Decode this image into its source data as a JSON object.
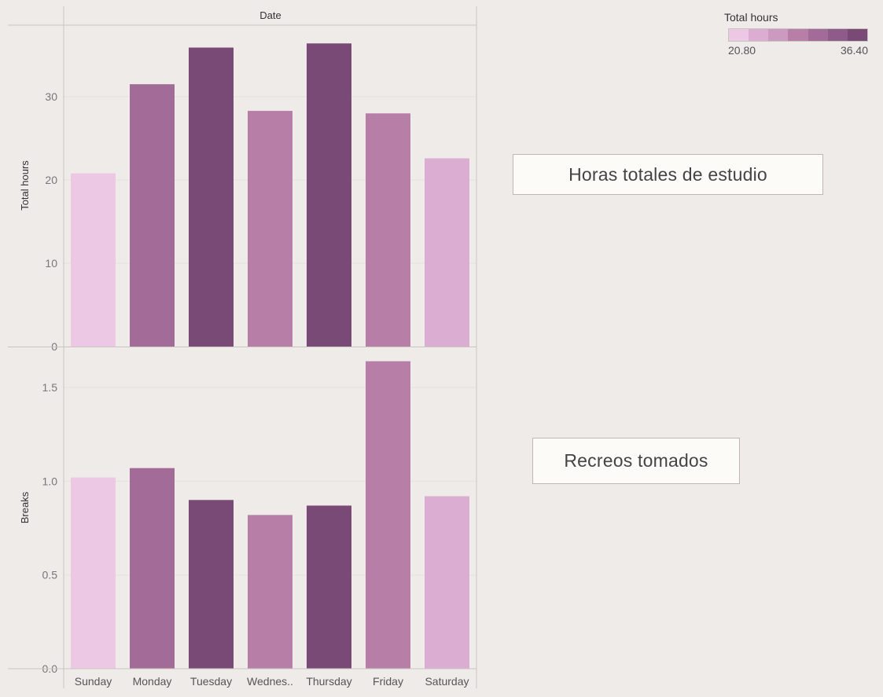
{
  "chart_data": [
    {
      "type": "bar",
      "header": "Date",
      "categories": [
        "Sunday",
        "Monday",
        "Tuesday",
        "Wednes..",
        "Thursday",
        "Friday",
        "Saturday"
      ],
      "values": [
        20.8,
        31.5,
        35.9,
        28.3,
        36.4,
        28.0,
        22.6
      ],
      "ylabel": "Total hours",
      "ylim": [
        0,
        38.5
      ],
      "yticks": [
        0,
        10,
        20,
        30
      ],
      "grid": true,
      "color_by": "Total hours"
    },
    {
      "type": "bar",
      "categories": [
        "Sunday",
        "Monday",
        "Tuesday",
        "Wednes..",
        "Thursday",
        "Friday",
        "Saturday"
      ],
      "values": [
        1.02,
        1.07,
        0.9,
        0.82,
        0.87,
        1.64,
        0.92
      ],
      "ylabel": "Breaks",
      "ylim": [
        0,
        1.71
      ],
      "yticks": [
        "0.0",
        "0.5",
        "1.0",
        "1.5"
      ],
      "grid": true,
      "color_by": "Total hours"
    }
  ],
  "legend": {
    "title": "Total hours",
    "min_label": "20.80",
    "max_label": "36.40",
    "min": 20.8,
    "max": 36.4,
    "colors": [
      "#edc8e5",
      "#dbadd2",
      "#cc9ac0",
      "#b77fa7",
      "#a36c98",
      "#8e5b8a",
      "#7a4a77"
    ]
  },
  "text_boxes": {
    "top": "Horas totales de estudio",
    "bottom": "Recreos tomados"
  },
  "colors": {
    "ramp_low": "#edc8e5",
    "ramp_high": "#7a4a77",
    "grid": "#e6e1de",
    "axis": "#c9c4c1"
  }
}
